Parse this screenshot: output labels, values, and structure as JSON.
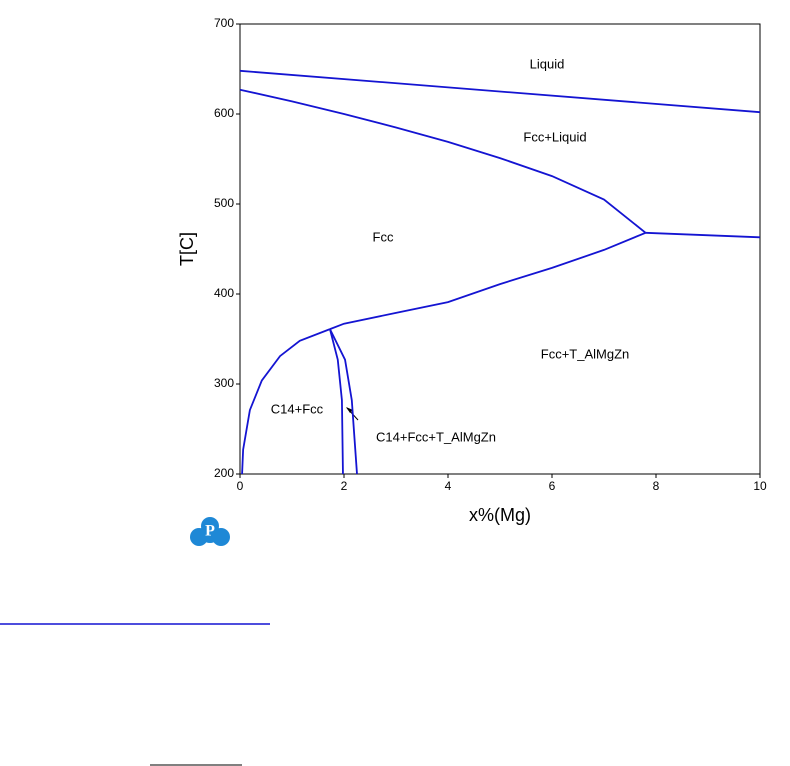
{
  "chart_data": {
    "type": "line",
    "x_label": "x%(Mg)",
    "y_label": "T[C]",
    "xlim": [
      0,
      10
    ],
    "ylim": [
      200,
      700
    ],
    "xticks": [
      0,
      2,
      4,
      6,
      8,
      10
    ],
    "yticks": [
      200,
      300,
      400,
      500,
      600,
      700
    ],
    "color": "#1414d2",
    "annotations": [
      "Liquid",
      "Fcc+Liquid",
      "Fcc",
      "Fcc+T_AlMgZn",
      "C14+Fcc",
      "C14+Fcc+T_AlMgZn"
    ],
    "series": [
      {
        "x": [
          0,
          10
        ],
        "values": [
          648,
          602
        ]
      },
      {
        "x": [
          0,
          1,
          2,
          3,
          4,
          5,
          6,
          7,
          7.8
        ],
        "values": [
          627,
          614,
          600,
          585,
          569,
          551,
          531,
          505,
          468
        ]
      },
      {
        "x": [
          7.8,
          10
        ],
        "values": [
          468,
          463
        ]
      },
      {
        "x": [
          1.73,
          2,
          3,
          4,
          5,
          6,
          7,
          7.8
        ],
        "values": [
          361,
          367,
          379,
          391,
          411,
          429,
          449,
          468
        ]
      },
      {
        "x": [
          0.04,
          0.06,
          0.19,
          0.42,
          0.77,
          1.15,
          1.73
        ],
        "values": [
          200,
          227,
          271,
          304,
          331,
          348,
          361
        ]
      },
      {
        "x": [
          1.73,
          1.88,
          1.96,
          1.98
        ],
        "values": [
          361,
          327,
          282,
          200
        ]
      },
      {
        "x": [
          1.73,
          2.02,
          2.15,
          2.25
        ],
        "values": [
          361,
          327,
          282,
          200
        ]
      }
    ]
  }
}
